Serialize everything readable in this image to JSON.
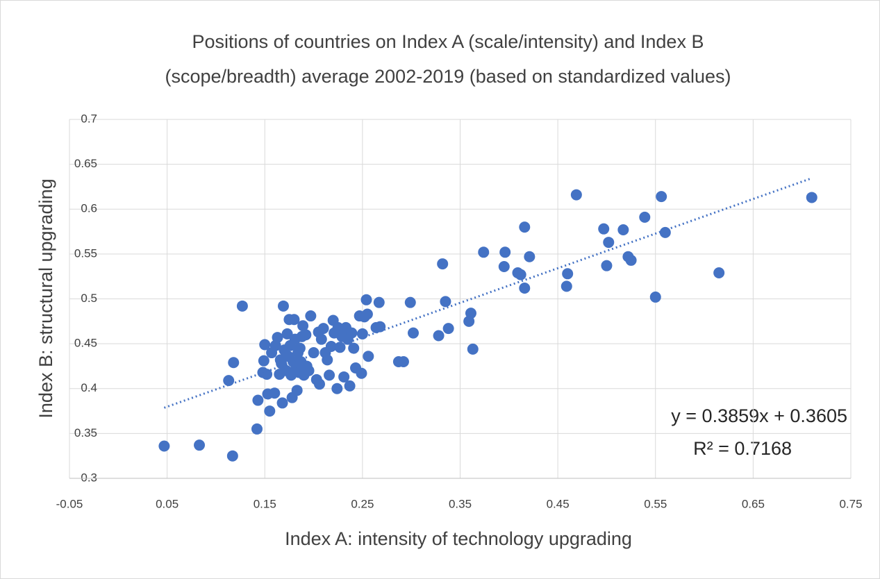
{
  "chart_data": {
    "type": "scatter",
    "title": [
      "Positions of countries on Index A (scale/intensity) and Index B",
      "(scope/breadth) average 2002-2019 (based on standardized values)"
    ],
    "x_label": "Index  A: intensity of technology upgrading",
    "y_label": "Index B: structural upgrading",
    "annotations": [
      "y = 0.3859x + 0.3605",
      "R² = 0.7168"
    ],
    "trendline": {
      "slope": 0.3859,
      "intercept": 0.3605,
      "x": [
        0.047,
        0.71
      ],
      "color": "#4472c4",
      "style": "dotted"
    },
    "xlim": [
      -0.05,
      0.75
    ],
    "xticks": [
      -0.05,
      0.05,
      0.15,
      0.25,
      0.35,
      0.45,
      0.55,
      0.65,
      0.75
    ],
    "ylim": [
      0.3,
      0.7
    ],
    "yticks": [
      0.3,
      0.35,
      0.4,
      0.45,
      0.5,
      0.55,
      0.6,
      0.65,
      0.7
    ],
    "grid": true,
    "series": [
      {
        "color": "#4472c4",
        "x": [
          0.047,
          0.083,
          0.117,
          0.113,
          0.118,
          0.127,
          0.142,
          0.143,
          0.148,
          0.149,
          0.15,
          0.152,
          0.153,
          0.155,
          0.157,
          0.16,
          0.161,
          0.163,
          0.165,
          0.166,
          0.167,
          0.168,
          0.169,
          0.17,
          0.172,
          0.173,
          0.174,
          0.175,
          0.176,
          0.177,
          0.178,
          0.179,
          0.18,
          0.181,
          0.182,
          0.183,
          0.184,
          0.185,
          0.186,
          0.187,
          0.188,
          0.189,
          0.19,
          0.192,
          0.193,
          0.195,
          0.197,
          0.2,
          0.203,
          0.205,
          0.206,
          0.208,
          0.21,
          0.212,
          0.214,
          0.216,
          0.218,
          0.22,
          0.221,
          0.224,
          0.225,
          0.227,
          0.229,
          0.231,
          0.233,
          0.235,
          0.237,
          0.239,
          0.241,
          0.243,
          0.247,
          0.249,
          0.25,
          0.252,
          0.254,
          0.255,
          0.256,
          0.264,
          0.267,
          0.268,
          0.287,
          0.292,
          0.299,
          0.302,
          0.328,
          0.332,
          0.335,
          0.338,
          0.359,
          0.361,
          0.363,
          0.374,
          0.395,
          0.396,
          0.409,
          0.412,
          0.416,
          0.416,
          0.421,
          0.459,
          0.46,
          0.469,
          0.497,
          0.5,
          0.502,
          0.517,
          0.522,
          0.525,
          0.539,
          0.55,
          0.556,
          0.56,
          0.615,
          0.71
        ],
        "values": [
          0.336,
          0.337,
          0.325,
          0.409,
          0.429,
          0.492,
          0.355,
          0.387,
          0.418,
          0.431,
          0.449,
          0.416,
          0.394,
          0.375,
          0.44,
          0.395,
          0.448,
          0.457,
          0.416,
          0.432,
          0.428,
          0.384,
          0.492,
          0.443,
          0.42,
          0.461,
          0.436,
          0.477,
          0.448,
          0.415,
          0.39,
          0.43,
          0.477,
          0.455,
          0.425,
          0.398,
          0.44,
          0.418,
          0.445,
          0.43,
          0.458,
          0.47,
          0.415,
          0.46,
          0.425,
          0.42,
          0.481,
          0.44,
          0.41,
          0.463,
          0.405,
          0.455,
          0.467,
          0.44,
          0.432,
          0.415,
          0.447,
          0.476,
          0.462,
          0.4,
          0.468,
          0.446,
          0.458,
          0.413,
          0.468,
          0.455,
          0.403,
          0.462,
          0.445,
          0.423,
          0.481,
          0.417,
          0.461,
          0.48,
          0.499,
          0.483,
          0.436,
          0.468,
          0.496,
          0.469,
          0.43,
          0.43,
          0.496,
          0.462,
          0.459,
          0.539,
          0.497,
          0.467,
          0.475,
          0.484,
          0.444,
          0.552,
          0.536,
          0.552,
          0.529,
          0.527,
          0.58,
          0.512,
          0.547,
          0.514,
          0.528,
          0.616,
          0.578,
          0.537,
          0.563,
          0.577,
          0.547,
          0.543,
          0.591,
          0.502,
          0.614,
          0.574,
          0.529,
          0.613
        ]
      }
    ]
  }
}
